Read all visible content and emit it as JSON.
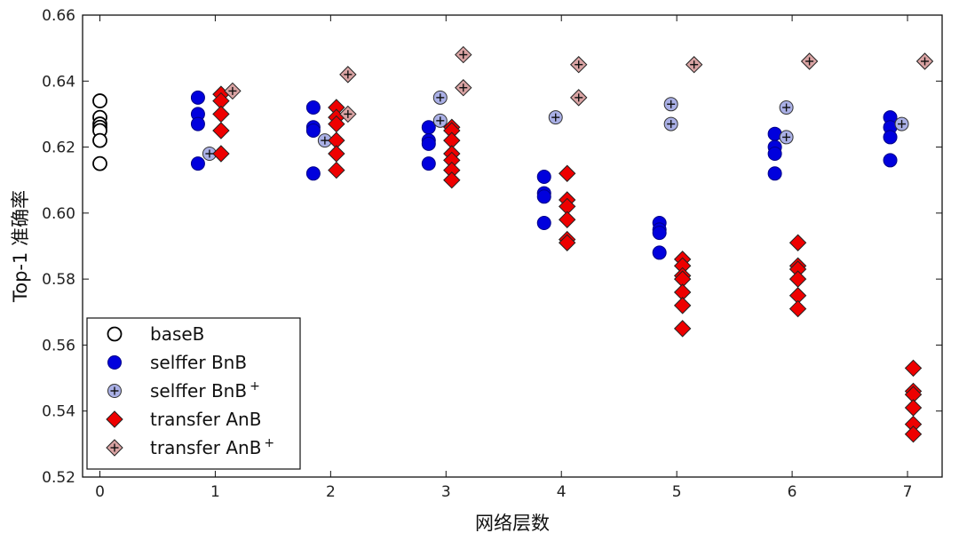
{
  "chart_data": {
    "type": "scatter",
    "xlabel": "网络层数",
    "ylabel": "Top-1 准确率",
    "xlim": [
      -0.15,
      7.3
    ],
    "ylim": [
      0.52,
      0.66
    ],
    "xticks": [
      "0",
      "1",
      "2",
      "3",
      "4",
      "5",
      "6",
      "7"
    ],
    "yticks": [
      "0.52",
      "0.54",
      "0.56",
      "0.58",
      "0.60",
      "0.62",
      "0.64",
      "0.66"
    ],
    "legend_position": "bottom-left",
    "colors": {
      "baseB": "#ffffff",
      "selffer_BnB": "#0000dd",
      "selffer_BnB_plus": "#aab0e6",
      "transfer_AnB": "#ee0000",
      "transfer_AnB_plus": "#d9a3a3"
    },
    "series": [
      {
        "name": "baseB",
        "marker": "circle-open",
        "points": [
          [
            0,
            0.634
          ],
          [
            0,
            0.629
          ],
          [
            0,
            0.627
          ],
          [
            0,
            0.626
          ],
          [
            0,
            0.625
          ],
          [
            0,
            0.622
          ],
          [
            0,
            0.615
          ]
        ]
      },
      {
        "name": "selffer BnB",
        "marker": "circle",
        "points": [
          [
            0.85,
            0.635
          ],
          [
            0.85,
            0.63
          ],
          [
            0.85,
            0.627
          ],
          [
            0.85,
            0.615
          ],
          [
            1.85,
            0.632
          ],
          [
            1.85,
            0.626
          ],
          [
            1.85,
            0.625
          ],
          [
            1.85,
            0.612
          ],
          [
            2.85,
            0.626
          ],
          [
            2.85,
            0.622
          ],
          [
            2.85,
            0.621
          ],
          [
            2.85,
            0.615
          ],
          [
            3.85,
            0.611
          ],
          [
            3.85,
            0.606
          ],
          [
            3.85,
            0.605
          ],
          [
            3.85,
            0.597
          ],
          [
            4.85,
            0.597
          ],
          [
            4.85,
            0.595
          ],
          [
            4.85,
            0.594
          ],
          [
            4.85,
            0.588
          ],
          [
            5.85,
            0.624
          ],
          [
            5.85,
            0.62
          ],
          [
            5.85,
            0.618
          ],
          [
            5.85,
            0.612
          ],
          [
            6.85,
            0.629
          ],
          [
            6.85,
            0.626
          ],
          [
            6.85,
            0.623
          ],
          [
            6.85,
            0.616
          ]
        ]
      },
      {
        "name": "selffer BnB",
        "marker": "circle-plus",
        "points": [
          [
            0.95,
            0.618
          ],
          [
            1.95,
            0.622
          ],
          [
            2.95,
            0.635
          ],
          [
            2.95,
            0.628
          ],
          [
            3.95,
            0.629
          ],
          [
            4.95,
            0.633
          ],
          [
            4.95,
            0.627
          ],
          [
            5.95,
            0.632
          ],
          [
            5.95,
            0.623
          ],
          [
            6.95,
            0.627
          ]
        ]
      },
      {
        "name": "transfer AnB",
        "marker": "diamond",
        "points": [
          [
            1.05,
            0.636
          ],
          [
            1.05,
            0.634
          ],
          [
            1.05,
            0.63
          ],
          [
            1.05,
            0.625
          ],
          [
            1.05,
            0.618
          ],
          [
            2.05,
            0.632
          ],
          [
            2.05,
            0.629
          ],
          [
            2.05,
            0.627
          ],
          [
            2.05,
            0.622
          ],
          [
            2.05,
            0.618
          ],
          [
            2.05,
            0.613
          ],
          [
            3.05,
            0.626
          ],
          [
            3.05,
            0.625
          ],
          [
            3.05,
            0.622
          ],
          [
            3.05,
            0.618
          ],
          [
            3.05,
            0.616
          ],
          [
            3.05,
            0.613
          ],
          [
            3.05,
            0.61
          ],
          [
            4.05,
            0.612
          ],
          [
            4.05,
            0.604
          ],
          [
            4.05,
            0.602
          ],
          [
            4.05,
            0.598
          ],
          [
            4.05,
            0.592
          ],
          [
            4.05,
            0.591
          ],
          [
            5.05,
            0.586
          ],
          [
            5.05,
            0.584
          ],
          [
            5.05,
            0.581
          ],
          [
            5.05,
            0.58
          ],
          [
            5.05,
            0.576
          ],
          [
            5.05,
            0.572
          ],
          [
            5.05,
            0.565
          ],
          [
            6.05,
            0.591
          ],
          [
            6.05,
            0.584
          ],
          [
            6.05,
            0.583
          ],
          [
            6.05,
            0.58
          ],
          [
            6.05,
            0.575
          ],
          [
            6.05,
            0.571
          ],
          [
            7.05,
            0.553
          ],
          [
            7.05,
            0.546
          ],
          [
            7.05,
            0.545
          ],
          [
            7.05,
            0.541
          ],
          [
            7.05,
            0.536
          ],
          [
            7.05,
            0.533
          ]
        ]
      },
      {
        "name": "transfer AnB",
        "marker": "diamond-plus",
        "points": [
          [
            1.15,
            0.637
          ],
          [
            2.15,
            0.642
          ],
          [
            2.15,
            0.63
          ],
          [
            3.15,
            0.648
          ],
          [
            3.15,
            0.638
          ],
          [
            4.15,
            0.645
          ],
          [
            4.15,
            0.635
          ],
          [
            5.15,
            0.645
          ],
          [
            6.15,
            0.646
          ],
          [
            7.15,
            0.646
          ]
        ]
      }
    ],
    "legend": [
      {
        "label": "baseB",
        "sup": "",
        "marker": "circle-open"
      },
      {
        "label": "selffer BnB",
        "sup": "",
        "marker": "circle"
      },
      {
        "label": "selffer BnB",
        "sup": "+",
        "marker": "circle-plus"
      },
      {
        "label": "transfer AnB",
        "sup": "",
        "marker": "diamond"
      },
      {
        "label": "transfer AnB",
        "sup": "+",
        "marker": "diamond-plus"
      }
    ]
  }
}
